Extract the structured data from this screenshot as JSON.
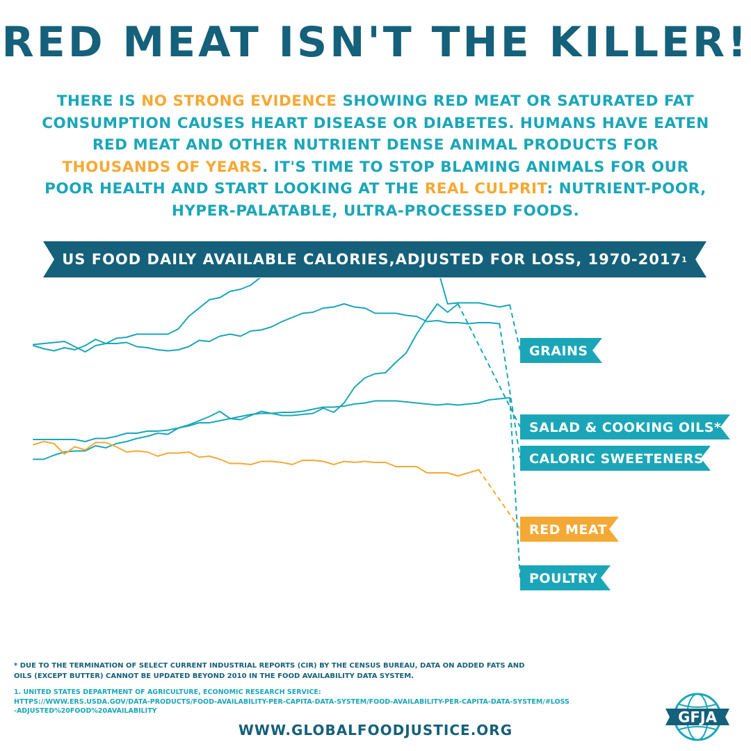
{
  "header": {
    "title": "RED MEAT ISN'T THE KILLER!"
  },
  "intro": {
    "l1_a": "THERE IS ",
    "l1_hl": "NO STRONG EVIDENCE",
    "l1_b": " SHOWING RED MEAT OR SATURATED FAT",
    "l2": "CONSUMPTION CAUSES HEART DISEASE OR DIABETES. HUMANS HAVE EATEN",
    "l3": "RED MEAT AND OTHER NUTRIENT DENSE ANIMAL PRODUCTS FOR",
    "l4_hl": "THOUSANDS OF YEARS",
    "l4_b": ". IT'S TIME TO STOP BLAMING ANIMALS FOR OUR",
    "l5_a": "POOR HEALTH AND START LOOKING AT THE ",
    "l5_hl": "REAL CULPRIT",
    "l5_b": ": NUTRIENT-POOR,",
    "l6": "HYPER-PALATABLE, ULTRA-PROCESSED FOODS."
  },
  "banner": {
    "text": "US FOOD DAILY AVAILABLE CALORIES,ADJUSTED FOR LOSS, 1970-2017",
    "footnote_ref": "1"
  },
  "colors": {
    "teal": "#1aa6b8",
    "navy": "#15607a",
    "orange": "#f4a934"
  },
  "chart_data": {
    "type": "line",
    "title": "US FOOD DAILY AVAILABLE CALORIES,ADJUSTED FOR LOSS, 1970-2017",
    "xlabel": "",
    "ylabel": "",
    "x_start": 1970,
    "x_end": 2017,
    "grid": false,
    "legend": "labels at right end of each line",
    "series": [
      {
        "name": "GRAINS",
        "color": "#1aa6b8",
        "values": [
          60,
          57,
          55,
          58,
          56,
          60,
          66,
          62,
          67,
          68,
          71,
          71,
          71,
          71,
          76,
          88,
          96,
          104,
          106,
          112,
          114,
          118,
          126,
          128,
          126,
          137,
          139,
          137,
          138,
          142,
          134,
          130,
          132,
          130,
          131,
          135,
          139,
          138,
          135,
          135,
          100,
          101,
          101,
          101,
          99,
          97,
          99
        ]
      },
      {
        "name": "SALAD & COOKING OILS*",
        "color": "#1aa6b8",
        "values": [
          -49,
          -49,
          -45,
          -42,
          -41,
          -41,
          -36,
          -38,
          -34,
          -32,
          -29,
          -27,
          -24,
          -25,
          -19,
          -16,
          -12,
          -8,
          -3,
          -10,
          -11,
          -7,
          -3,
          -5,
          -7,
          -7,
          -6,
          -5,
          0,
          -4,
          5,
          20,
          29,
          33,
          34,
          44,
          53,
          71,
          86,
          100,
          92,
          100
        ]
      },
      {
        "name": "CALORIC SWEETENERS",
        "color": "#1aa6b8",
        "values": [
          61,
          62,
          63,
          64,
          59,
          54,
          60,
          62,
          62,
          63,
          59,
          58,
          56,
          55,
          56,
          59,
          65,
          64,
          69,
          71,
          69,
          74,
          75,
          78,
          83,
          87,
          91,
          92,
          96,
          97,
          100,
          97,
          96,
          91,
          91,
          91,
          89,
          88,
          83,
          84,
          82,
          82,
          81,
          82,
          82,
          81
        ]
      },
      {
        "name": "RED MEAT",
        "color": "#f4a934",
        "values": [
          -35,
          -32,
          -34,
          -44,
          -37,
          -40,
          -33,
          -33,
          -37,
          -42,
          -41,
          -42,
          -46,
          -43,
          -43,
          -42,
          -47,
          -46,
          -49,
          -53,
          -53,
          -54,
          -51,
          -51,
          -52,
          -54,
          -50,
          -50,
          -51,
          -54,
          -51,
          -52,
          -51,
          -52,
          -52,
          -56,
          -56,
          -56,
          -62,
          -62,
          -62,
          -65,
          -62,
          -59
        ]
      },
      {
        "name": "POULTRY",
        "color": "#1aa6b8",
        "values": [
          -30,
          -30,
          -30,
          -30,
          -30,
          -32,
          -29,
          -29,
          -27,
          -24,
          -24,
          -22,
          -22,
          -21,
          -19,
          -17,
          -14,
          -14,
          -12,
          -10,
          -8,
          -6,
          -5,
          -5,
          -4,
          -4,
          -3,
          -1,
          1,
          1,
          2,
          4,
          5,
          7,
          7,
          7,
          6,
          5,
          4,
          3,
          4,
          3,
          4,
          5,
          8,
          9,
          10
        ]
      }
    ]
  },
  "footnote": {
    "star": "* DUE TO THE TERMINATION OF SELECT CURRENT INDUSTRIAL REPORTS (CIR) BY THE CENSUS BUREAU, DATA ON ADDED FATS AND OILS (EXCEPT BUTTER) CANNOT BE UPDATED BEYOND 2010 IN THE FOOD AVAILABILITY DATA SYSTEM."
  },
  "source": {
    "label": "1. UNITED STATES DEPARTMENT OF AGRICULTURE, ECONOMIC RESEARCH SERVICE:",
    "url": "HTTPS://WWW.ERS.USDA.GOV/DATA-PRODUCTS/FOOD-AVAILABILITY-PER-CAPITA-DATA-SYSTEM/FOOD-AVAILABILITY-PER-CAPITA-DATA-SYSTEM/#LOSS-ADJUSTED%20FOOD%20AVAILABILITY"
  },
  "footer": {
    "website": "WWW.GLOBALFOODJUSTICE.ORG",
    "logo_text": "GFJA",
    "logo_icon": "globe-icon"
  }
}
